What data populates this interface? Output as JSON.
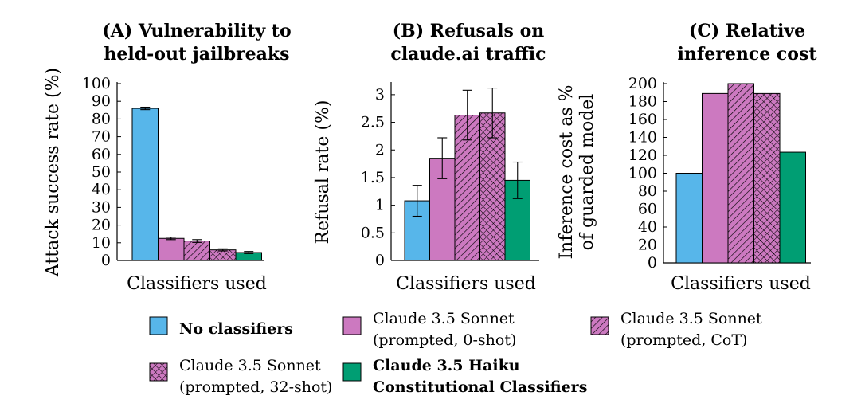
{
  "colors": {
    "blue": "#57b6ea",
    "pink": "#cc79c0",
    "green": "#009e73",
    "errorbar": "#000000"
  },
  "legend": [
    {
      "key": "none",
      "lines": [
        "No classifiers"
      ],
      "bold": true,
      "fill": "solid",
      "color": "#57b6ea"
    },
    {
      "key": "zero",
      "lines": [
        "Claude 3.5 Sonnet",
        "(prompted, 0-shot)"
      ],
      "bold": false,
      "fill": "solid",
      "color": "#cc79c0"
    },
    {
      "key": "cot",
      "lines": [
        "Claude 3.5 Sonnet",
        "(prompted, CoT)"
      ],
      "bold": false,
      "fill": "diagonal",
      "color": "#cc79c0"
    },
    {
      "key": "shot32",
      "lines": [
        "Claude 3.5 Sonnet",
        "(prompted, 32-shot)"
      ],
      "bold": false,
      "fill": "crosshatch",
      "color": "#cc79c0"
    },
    {
      "key": "haiku",
      "lines": [
        "Claude 3.5 Haiku",
        "Constitutional Classifiers"
      ],
      "bold": true,
      "fill": "solid",
      "color": "#009e73"
    }
  ],
  "chart_data": [
    {
      "type": "bar",
      "title": [
        "(A) Vulnerability to",
        "held-out jailbreaks"
      ],
      "xlabel": "Classifiers used",
      "ylabel": [
        "Attack success rate (%)"
      ],
      "ylim": [
        0,
        100
      ],
      "yticks": [
        0,
        10,
        20,
        30,
        40,
        50,
        60,
        70,
        80,
        90,
        100
      ],
      "ytick_labels": [
        "0",
        "10",
        "20",
        "30",
        "40",
        "50",
        "60",
        "70",
        "80",
        "90",
        "100"
      ],
      "categories": [
        "No classifiers",
        "Claude 3.5 Sonnet (prompted, 0-shot)",
        "Claude 3.5 Sonnet (prompted, CoT)",
        "Claude 3.5 Sonnet (prompted, 32-shot)",
        "Claude 3.5 Haiku Constitutional Classifiers"
      ],
      "values": [
        86,
        12.5,
        11,
        6,
        4.5
      ],
      "error_low": [
        85.3,
        11.8,
        10.2,
        5.4,
        3.9
      ],
      "error_high": [
        86.7,
        13.2,
        11.8,
        6.6,
        5.1
      ]
    },
    {
      "type": "bar",
      "title": [
        "(B) Refusals on",
        "claude.ai traffic"
      ],
      "xlabel": "Classifiers used",
      "ylabel": [
        "Refusal rate (%)"
      ],
      "ylim": [
        0,
        3.2
      ],
      "yticks": [
        0,
        0.5,
        1,
        1.5,
        2,
        2.5,
        3
      ],
      "ytick_labels": [
        "0",
        "0.5",
        "1",
        "1.5",
        "2",
        "2.5",
        "3"
      ],
      "categories": [
        "No classifiers",
        "Claude 3.5 Sonnet (prompted, 0-shot)",
        "Claude 3.5 Sonnet (prompted, CoT)",
        "Claude 3.5 Sonnet (prompted, 32-shot)",
        "Claude 3.5 Haiku Constitutional Classifiers"
      ],
      "values": [
        1.08,
        1.85,
        2.63,
        2.67,
        1.45
      ],
      "error_low": [
        0.8,
        1.48,
        2.18,
        2.22,
        1.12
      ],
      "error_high": [
        1.36,
        2.22,
        3.08,
        3.12,
        1.78
      ]
    },
    {
      "type": "bar",
      "title": [
        "(C) Relative",
        "inference cost"
      ],
      "xlabel": "Classifiers used",
      "ylabel": [
        "Inference cost as %",
        "of guarded model"
      ],
      "ylim": [
        0,
        200
      ],
      "yticks": [
        0,
        20,
        40,
        60,
        80,
        100,
        120,
        140,
        160,
        180,
        200
      ],
      "ytick_labels": [
        "0",
        "20",
        "40",
        "60",
        "80",
        "100",
        "120",
        "140",
        "160",
        "180",
        "200"
      ],
      "categories": [
        "No classifiers",
        "Claude 3.5 Sonnet (prompted, 0-shot)",
        "Claude 3.5 Sonnet (prompted, CoT)",
        "Claude 3.5 Sonnet (prompted, 32-shot)",
        "Claude 3.5 Haiku Constitutional Classifiers"
      ],
      "values": [
        100,
        189,
        200,
        189,
        123.5
      ]
    }
  ]
}
